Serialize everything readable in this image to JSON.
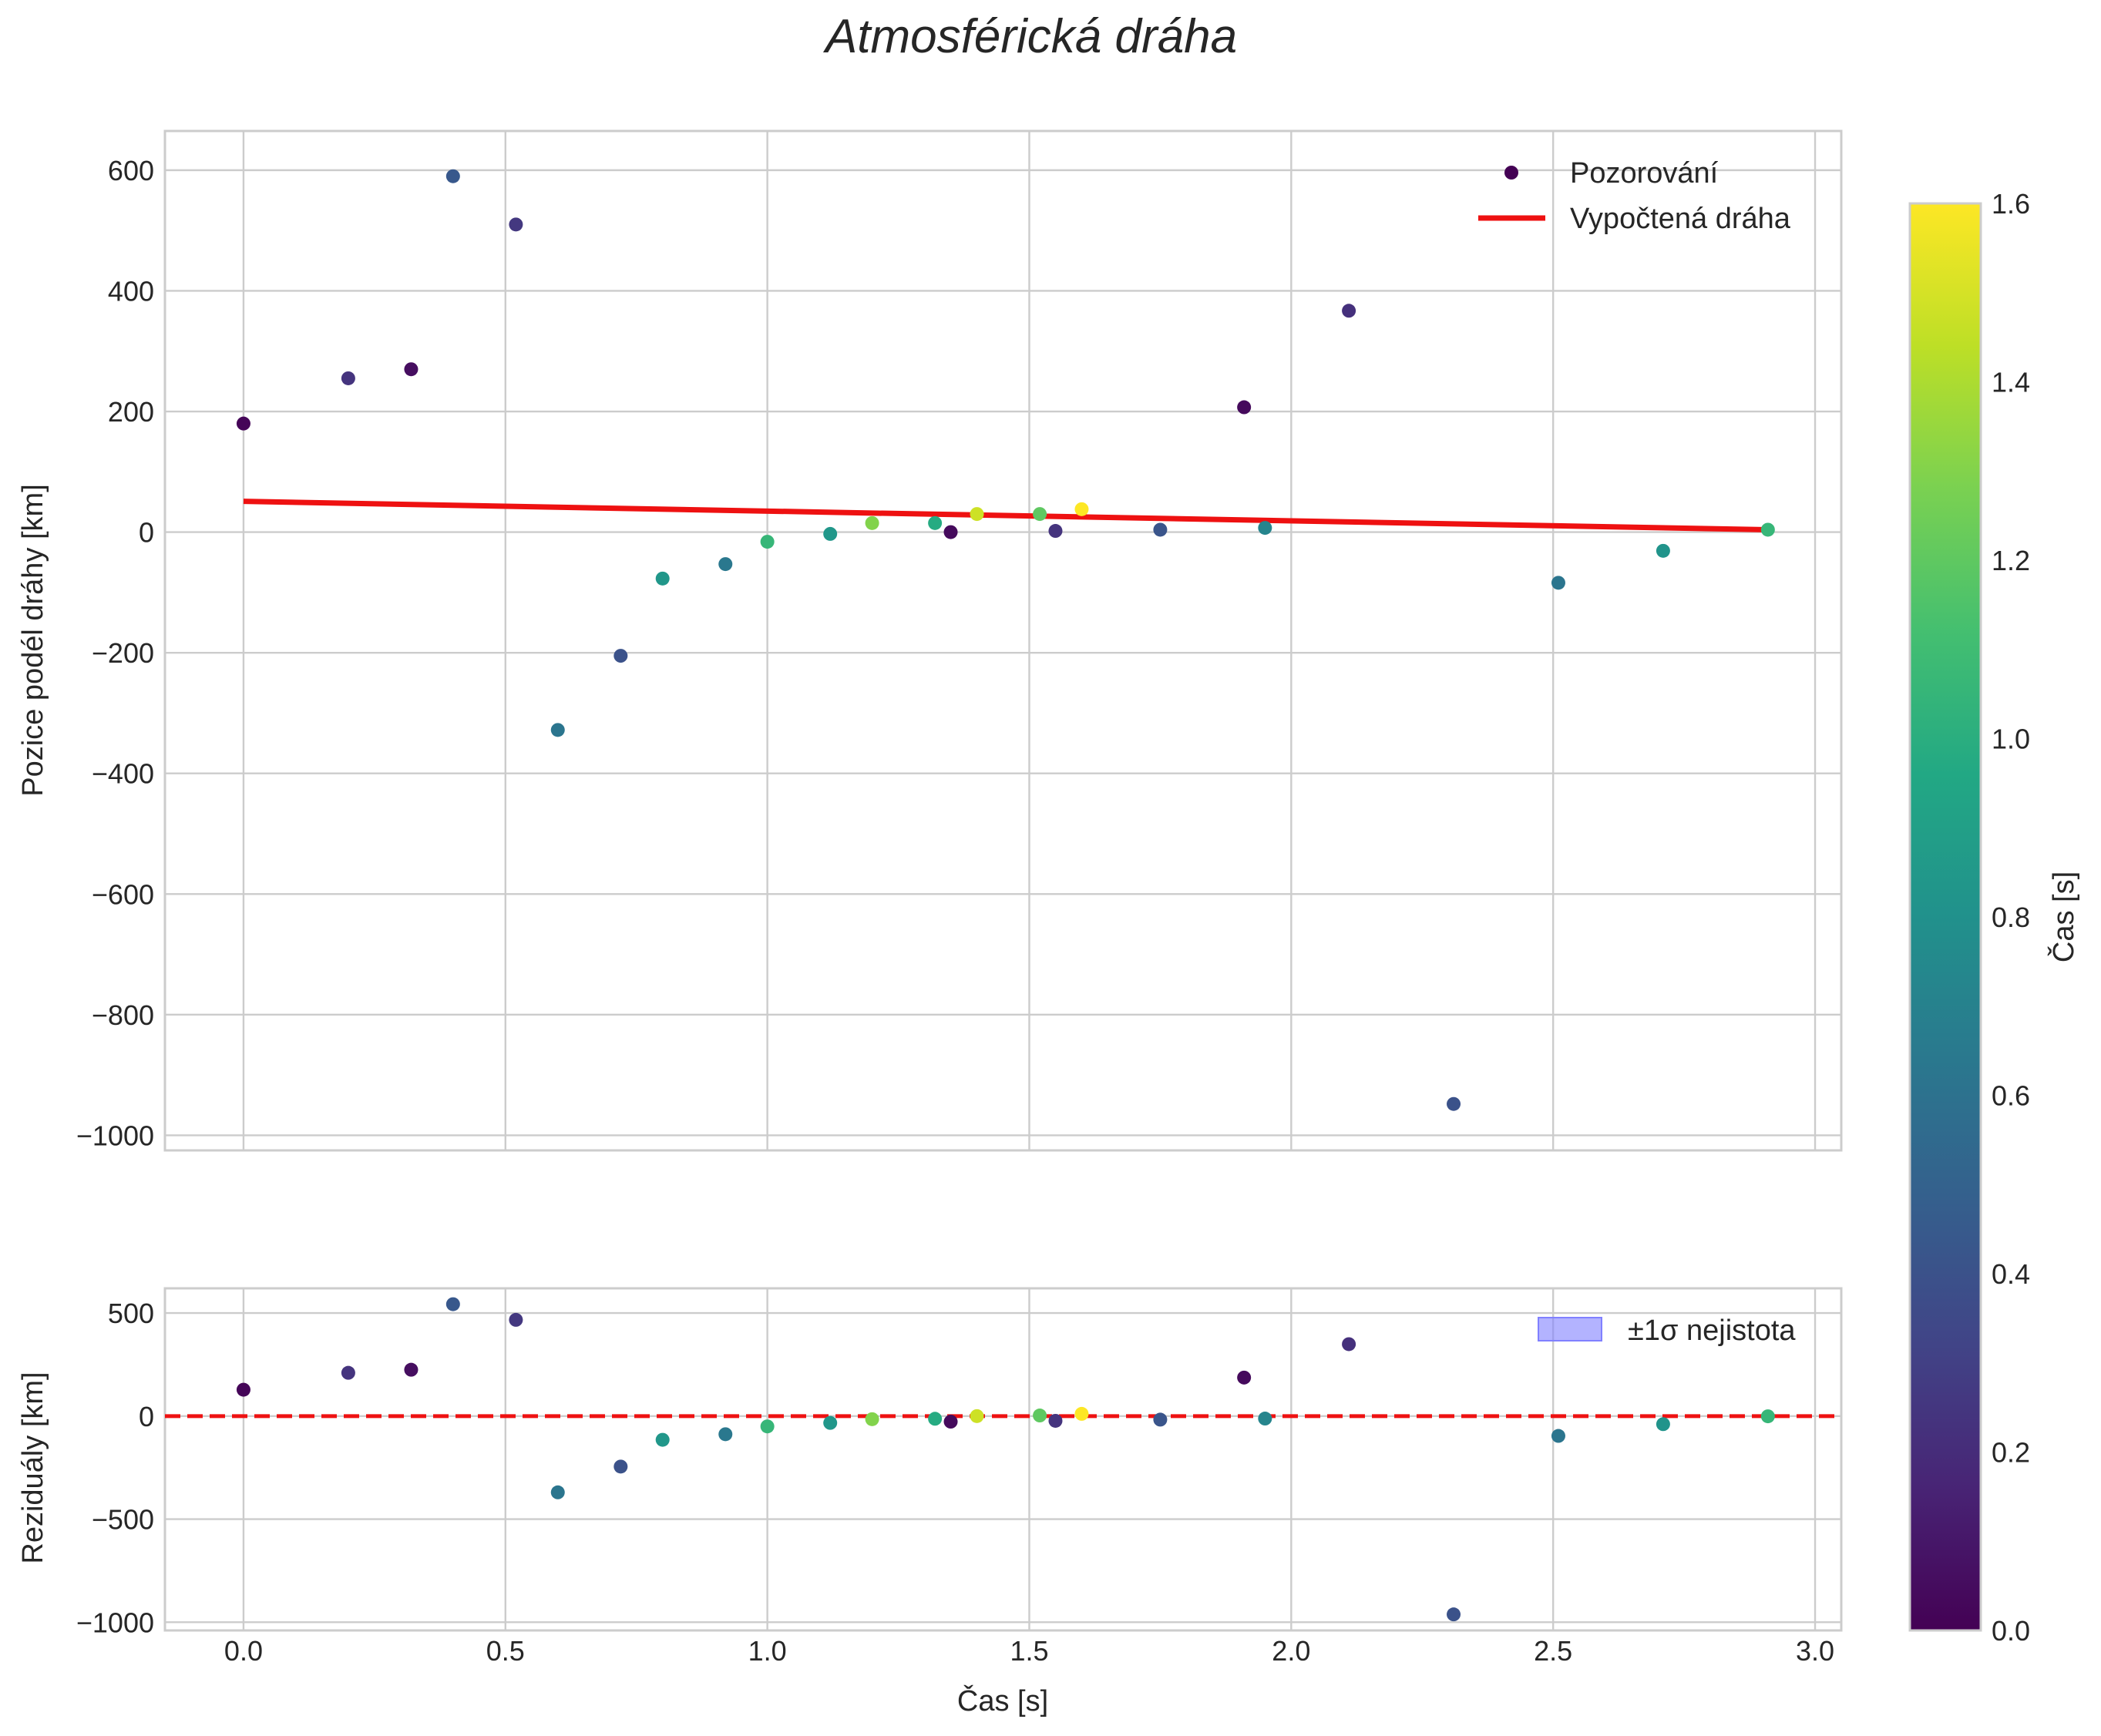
{
  "chart_data": {
    "type": "scatter",
    "title": "Atmosférická dráha",
    "xlabel": "Čas [s]",
    "xlim": [
      -0.15,
      3.05
    ],
    "x_ticks": [
      "0.0",
      "0.5",
      "1.0",
      "1.5",
      "2.0",
      "2.5",
      "3.0"
    ],
    "x_tick_values": [
      0,
      0.5,
      1.0,
      1.5,
      2.0,
      2.5,
      3.0
    ],
    "colormap": "viridis",
    "colorbar": {
      "label": "Čas [s]",
      "range": [
        0.0,
        1.6
      ],
      "ticks": [
        "0.0",
        "0.2",
        "0.4",
        "0.6",
        "0.8",
        "1.0",
        "1.2",
        "1.4",
        "1.6"
      ],
      "tick_values": [
        0,
        0.2,
        0.4,
        0.6,
        0.8,
        1.0,
        1.2,
        1.4,
        1.6
      ]
    },
    "observations": {
      "name": "Pozorování",
      "t": [
        0.0,
        0.2,
        0.32,
        0.4,
        0.52,
        0.6,
        0.72,
        0.8,
        0.92,
        1.0,
        1.12,
        1.2,
        1.32,
        1.35,
        1.4,
        1.52,
        1.55,
        1.6,
        1.75,
        1.91,
        1.95,
        2.11,
        2.31,
        2.51,
        2.71,
        2.91
      ],
      "position": [
        180,
        255,
        270,
        590,
        510,
        -328,
        -205,
        -77,
        -53,
        -16,
        -3,
        15,
        15,
        0,
        30,
        30,
        2,
        38,
        4,
        207,
        7,
        367,
        -948,
        -84,
        -31,
        4
      ],
      "residual": [
        128,
        210,
        225,
        543,
        467,
        -370,
        -245,
        -115,
        -88,
        -50,
        -33,
        -15,
        -13,
        -27,
        0,
        3,
        -23,
        11,
        -17,
        187,
        -12,
        349,
        -962,
        -96,
        -39,
        -1
      ],
      "color_values": [
        0.02,
        0.24,
        0.06,
        0.44,
        0.26,
        0.62,
        0.4,
        0.84,
        0.64,
        1.06,
        0.84,
        1.3,
        0.98,
        0.04,
        1.48,
        1.2,
        0.24,
        1.6,
        0.42,
        0.04,
        0.72,
        0.22,
        0.4,
        0.62,
        0.82,
        1.06
      ]
    },
    "fit_line": {
      "name": "Vypočtená dráha",
      "color": "#ee1111",
      "t": [
        0.0,
        2.91
      ],
      "position": [
        51,
        4
      ]
    },
    "top_panel": {
      "ylabel": "Pozice podél dráhy [km]",
      "ylim": [
        -1025,
        665
      ],
      "y_ticks": [
        "600",
        "400",
        "200",
        "0",
        "−200",
        "−400",
        "−600",
        "−800",
        "−1000"
      ],
      "y_tick_values": [
        600,
        400,
        200,
        0,
        -200,
        -400,
        -600,
        -800,
        -1000
      ],
      "legend_position": "upper right"
    },
    "bottom_panel": {
      "ylabel": "Reziduály [km]",
      "ylim": [
        -1040,
        620
      ],
      "y_ticks": [
        "500",
        "0",
        "−500",
        "−1000"
      ],
      "y_tick_values": [
        500,
        0,
        -500,
        -1000
      ],
      "zero_line_color": "#ee1111",
      "band_label": "±1σ nejistota",
      "band_color": "#8080ff",
      "legend_position": "upper right"
    }
  }
}
